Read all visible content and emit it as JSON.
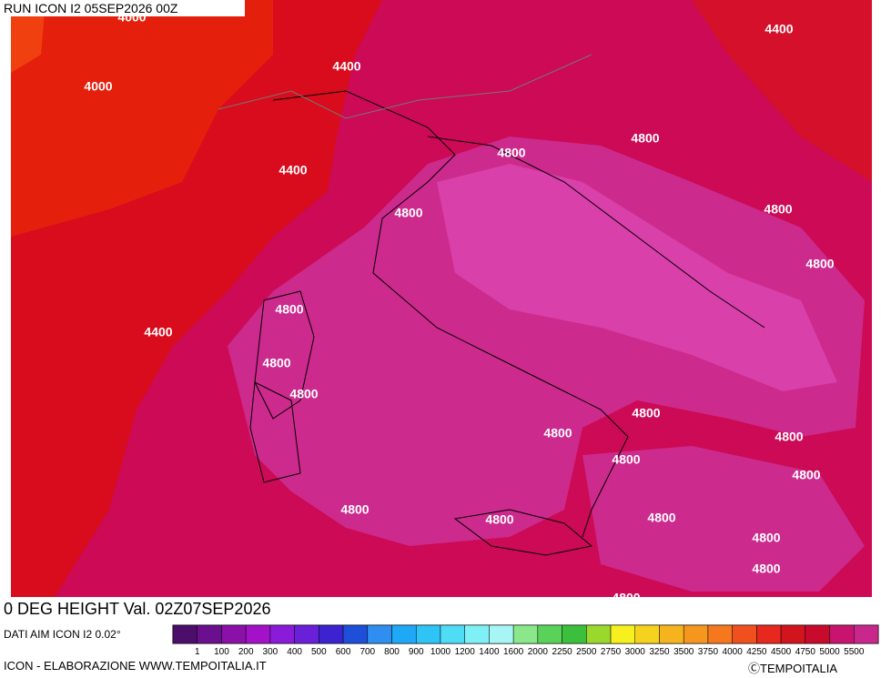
{
  "header": {
    "run": "RUN ICON I2 05SEP2026 00Z"
  },
  "map": {
    "contour_labels": [
      "4000",
      "4000",
      "4400",
      "4400",
      "4400",
      "4800",
      "4800",
      "4800",
      "4800",
      "4800",
      "4800",
      "4400",
      "4800",
      "4800",
      "4800",
      "4800",
      "4800",
      "4800",
      "4800",
      "4800",
      "4800",
      "4800",
      "4800",
      "4800",
      "4800"
    ]
  },
  "footer": {
    "title": "0 DEG HEIGHT Val. 02Z07SEP2026",
    "source": "DATI AIM ICON I2 0.02°",
    "credit": "ICON - ELABORAZIONE WWW.TEMPOITALIA.IT",
    "copyright": "ⒸTEMPOITALIA"
  },
  "colorbar": {
    "labels": [
      "1",
      "100",
      "200",
      "300",
      "400",
      "500",
      "600",
      "700",
      "800",
      "900",
      "1000",
      "1200",
      "1400",
      "1600",
      "2000",
      "2250",
      "2500",
      "2750",
      "3000",
      "3250",
      "3500",
      "3750",
      "4000",
      "4250",
      "4500",
      "4750",
      "5000",
      "5500"
    ],
    "colors": [
      "#4b0f6b",
      "#6a0f8e",
      "#8a10a8",
      "#a412c8",
      "#8a1bd8",
      "#6a1fd8",
      "#3b24d0",
      "#1e4fd8",
      "#2f8ef0",
      "#1ea8f5",
      "#2ec4f5",
      "#4fdcf5",
      "#7ff0f5",
      "#a8f5f5",
      "#8ae88a",
      "#5ad25a",
      "#3cbf3c",
      "#9bd82e",
      "#f5f01e",
      "#f5d21e",
      "#f5b41e",
      "#f5961e",
      "#f5781e",
      "#f0501e",
      "#e6281e",
      "#d2141e",
      "#c80a2d",
      "#c8146e",
      "#c8288c"
    ]
  }
}
